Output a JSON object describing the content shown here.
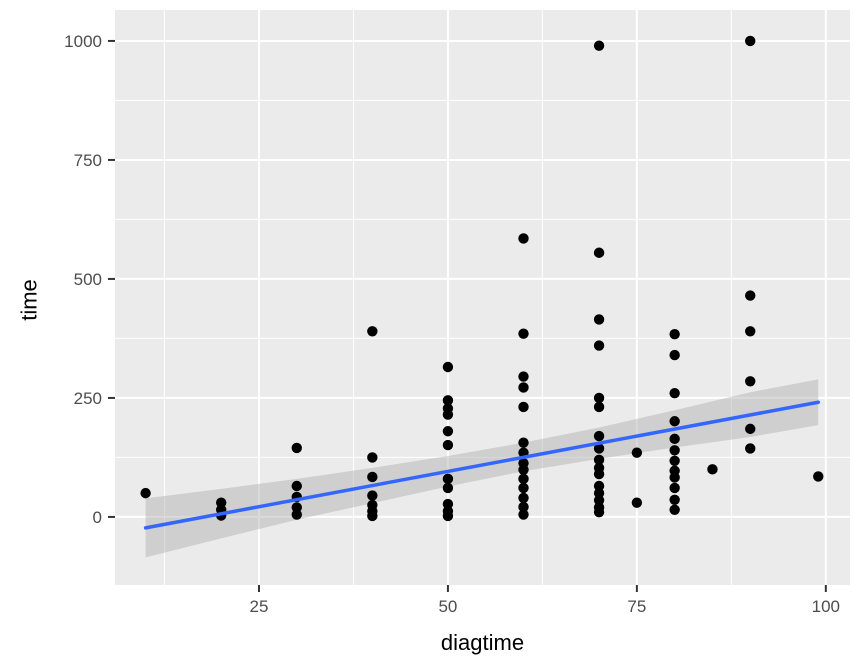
{
  "chart_data": {
    "type": "scatter",
    "title": "",
    "xlabel": "diagtime",
    "ylabel": "time",
    "x_ticks": [
      25,
      50,
      75,
      100
    ],
    "y_ticks": [
      0,
      250,
      500,
      750,
      1000
    ],
    "x_minor_ticks": [
      12.5,
      37.5,
      62.5,
      87.5
    ],
    "y_minor_ticks": [
      125,
      375,
      625,
      875
    ],
    "xlim": [
      5.95,
      103.2
    ],
    "ylim": [
      -143,
      1065
    ],
    "grid": true,
    "legend": "none",
    "points": [
      [
        10,
        50
      ],
      [
        20,
        30
      ],
      [
        20,
        15
      ],
      [
        20,
        3
      ],
      [
        30,
        145
      ],
      [
        30,
        65
      ],
      [
        30,
        42
      ],
      [
        30,
        20
      ],
      [
        30,
        5
      ],
      [
        40,
        390
      ],
      [
        40,
        125
      ],
      [
        40,
        84
      ],
      [
        40,
        45
      ],
      [
        40,
        25
      ],
      [
        40,
        12
      ],
      [
        40,
        2
      ],
      [
        50,
        315
      ],
      [
        50,
        245
      ],
      [
        50,
        228
      ],
      [
        50,
        215
      ],
      [
        50,
        180
      ],
      [
        50,
        151
      ],
      [
        50,
        80
      ],
      [
        50,
        61
      ],
      [
        50,
        27
      ],
      [
        50,
        12
      ],
      [
        50,
        2
      ],
      [
        60,
        585
      ],
      [
        60,
        385
      ],
      [
        60,
        295
      ],
      [
        60,
        272
      ],
      [
        60,
        231
      ],
      [
        60,
        156
      ],
      [
        60,
        135
      ],
      [
        60,
        113
      ],
      [
        60,
        99
      ],
      [
        60,
        80
      ],
      [
        60,
        61
      ],
      [
        60,
        40
      ],
      [
        60,
        21
      ],
      [
        60,
        5
      ],
      [
        70,
        990
      ],
      [
        70,
        555
      ],
      [
        70,
        415
      ],
      [
        70,
        360
      ],
      [
        70,
        250
      ],
      [
        70,
        231
      ],
      [
        70,
        170
      ],
      [
        70,
        144
      ],
      [
        70,
        120
      ],
      [
        70,
        103
      ],
      [
        70,
        90
      ],
      [
        70,
        65
      ],
      [
        70,
        50
      ],
      [
        70,
        35
      ],
      [
        70,
        20
      ],
      [
        70,
        10
      ],
      [
        75,
        135
      ],
      [
        75,
        30
      ],
      [
        80,
        384
      ],
      [
        80,
        340
      ],
      [
        80,
        260
      ],
      [
        80,
        201
      ],
      [
        80,
        164
      ],
      [
        80,
        140
      ],
      [
        80,
        118
      ],
      [
        80,
        97
      ],
      [
        80,
        83
      ],
      [
        80,
        61
      ],
      [
        80,
        36
      ],
      [
        80,
        15
      ],
      [
        85,
        100
      ],
      [
        90,
        1000
      ],
      [
        90,
        465
      ],
      [
        90,
        390
      ],
      [
        90,
        285
      ],
      [
        90,
        185
      ],
      [
        90,
        144
      ],
      [
        99,
        85
      ]
    ],
    "smooth_line": {
      "x1": 10,
      "y1": -23,
      "x2": 99,
      "y2": 241
    },
    "ribbon": {
      "x": [
        10,
        20,
        30,
        40,
        50,
        60,
        70,
        80,
        90,
        99
      ],
      "upper": [
        39,
        59,
        80,
        103,
        128,
        156,
        188,
        224,
        262,
        289
      ],
      "lower": [
        -85,
        -45,
        -6,
        29,
        64,
        96,
        122,
        146,
        168,
        193
      ]
    },
    "colors": {
      "panel": "#EBEBEB",
      "grid": "#FFFFFF",
      "point": "#000000",
      "line": "#3366FF",
      "ribbon": "#ADADAD",
      "axis_text": "#4D4D4D",
      "tick_mark": "#333333",
      "title_text": "#000000"
    }
  }
}
